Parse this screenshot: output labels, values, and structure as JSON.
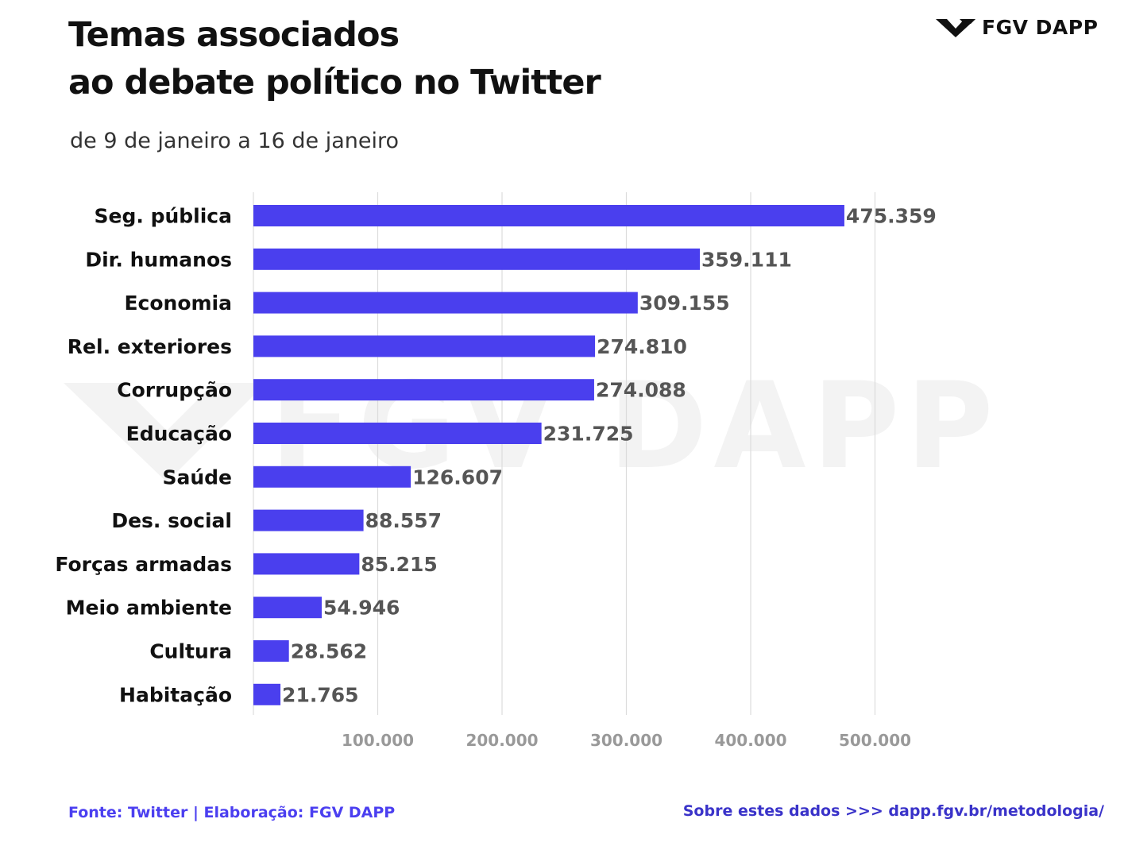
{
  "header": {
    "title_line1": "Temas associados",
    "title_line2": "ao debate político no Twitter",
    "subtitle": "de 9 de janeiro a 16 de janeiro"
  },
  "logo": {
    "text": "FGV DAPP",
    "icon": "fgv-chevron-icon"
  },
  "watermark": {
    "text": "FGV DAPP"
  },
  "colors": {
    "bar": "#4a3fee",
    "value_label": "#555555",
    "category_label": "#111111",
    "tick_label": "#999999",
    "grid": "#dcdcdc",
    "footer": "#4b3ff0"
  },
  "chart_data": {
    "type": "bar",
    "orientation": "horizontal",
    "categories": [
      "Seg. pública",
      "Dir. humanos",
      "Economia",
      "Rel. exteriores",
      "Corrupção",
      "Educação",
      "Saúde",
      "Des. social",
      "Forças armadas",
      "Meio ambiente",
      "Cultura",
      "Habitação"
    ],
    "values": [
      475359,
      359111,
      309155,
      274810,
      274088,
      231725,
      126607,
      88557,
      85215,
      54946,
      28562,
      21765
    ],
    "value_labels": [
      "475.359",
      "359.111",
      "309.155",
      "274.810",
      "274.088",
      "231.725",
      "126.607",
      "88.557",
      "85.215",
      "54.946",
      "28.562",
      "21.765"
    ],
    "x_ticks": [
      100000,
      200000,
      300000,
      400000,
      500000
    ],
    "x_tick_labels": [
      "100.000",
      "200.000",
      "300.000",
      "400.000",
      "500.000"
    ],
    "xlim": [
      0,
      500000
    ],
    "grid": true,
    "legend": "none"
  },
  "footer": {
    "source": "Fonte: Twitter | Elaboração: FGV DAPP",
    "link": "Sobre estes dados >>> dapp.fgv.br/metodologia/"
  }
}
